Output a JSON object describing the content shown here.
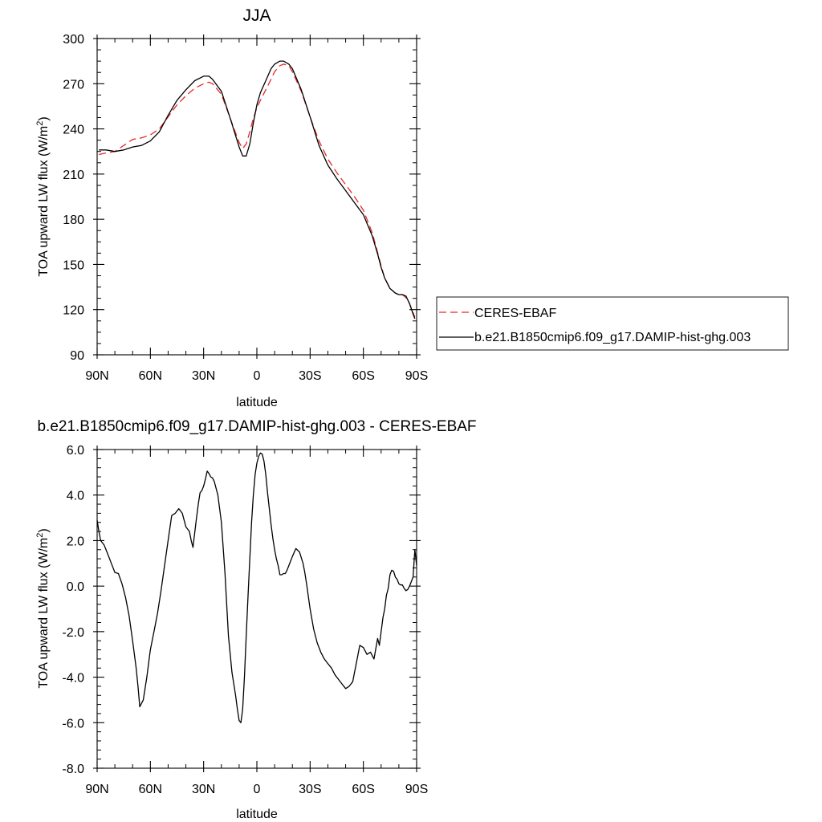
{
  "chart_data": [
    {
      "type": "line",
      "title": "JJA",
      "xlabel": "latitude",
      "ylabel": "TOA upward LW flux (W/m",
      "ylabel_sup": "2",
      "ylabel_close": ")",
      "x_ticks": [
        -90,
        -60,
        -30,
        0,
        30,
        60,
        90
      ],
      "x_tick_labels": [
        "90N",
        "60N",
        "30N",
        "0",
        "30S",
        "60S",
        "90S"
      ],
      "xlim": [
        -90,
        90
      ],
      "y_ticks": [
        90,
        120,
        150,
        180,
        210,
        240,
        270,
        300
      ],
      "y_tick_labels": [
        "90",
        "120",
        "150",
        "180",
        "210",
        "240",
        "270",
        "300"
      ],
      "ylim": [
        90,
        300
      ],
      "legend_position": "right",
      "series": [
        {
          "name": "CERES-EBAF",
          "color": "#e8282b",
          "dash": "dashed",
          "x": [
            -89,
            -85,
            -80,
            -75,
            -70,
            -65,
            -60,
            -55,
            -50,
            -45,
            -40,
            -35,
            -30,
            -27,
            -25,
            -20,
            -15,
            -10,
            -8,
            -6,
            -4,
            -2,
            0,
            2,
            5,
            8,
            10,
            13,
            15,
            18,
            20,
            25,
            30,
            35,
            40,
            45,
            50,
            55,
            60,
            65,
            68,
            70,
            72,
            75,
            78,
            80,
            82,
            84,
            86,
            88,
            89
          ],
          "y": [
            223,
            224,
            225,
            229,
            233,
            234,
            236,
            240,
            248,
            256,
            262,
            267,
            270,
            271,
            270,
            263,
            247,
            231,
            227,
            230,
            238,
            247,
            254,
            259,
            266,
            273,
            278,
            282,
            283,
            282,
            278,
            265,
            248,
            232,
            220,
            211,
            203,
            195,
            186,
            171,
            158,
            149,
            141,
            134,
            131,
            130,
            130,
            128,
            124,
            118,
            115
          ]
        },
        {
          "name": "b.e21.B1850cmip6.f09_g17.DAMIP-hist-ghg.003",
          "color": "#000000",
          "dash": "solid",
          "x": [
            -89,
            -85,
            -80,
            -75,
            -70,
            -65,
            -60,
            -55,
            -50,
            -45,
            -40,
            -35,
            -30,
            -27,
            -25,
            -20,
            -15,
            -10,
            -8,
            -6,
            -4,
            -2,
            0,
            2,
            5,
            8,
            10,
            13,
            15,
            18,
            20,
            25,
            30,
            35,
            40,
            45,
            50,
            55,
            60,
            65,
            68,
            70,
            72,
            75,
            78,
            80,
            82,
            84,
            86,
            88,
            89
          ],
          "y": [
            226,
            226,
            225,
            226,
            228,
            229,
            232,
            238,
            249,
            259,
            266,
            272,
            275,
            275,
            273,
            265,
            247,
            228,
            222,
            222,
            230,
            244,
            256,
            264,
            272,
            280,
            283,
            285,
            285,
            283,
            280,
            266,
            248,
            229,
            216,
            207,
            199,
            191,
            183,
            169,
            157,
            148,
            141,
            134,
            131,
            130,
            130,
            129,
            124,
            117,
            114
          ]
        }
      ]
    },
    {
      "type": "line",
      "title": "b.e21.B1850cmip6.f09_g17.DAMIP-hist-ghg.003 - CERES-EBAF",
      "xlabel": "latitude",
      "ylabel": "TOA upward LW flux (W/m",
      "ylabel_sup": "2",
      "ylabel_close": ")",
      "x_ticks": [
        -90,
        -60,
        -30,
        0,
        30,
        60,
        90
      ],
      "x_tick_labels": [
        "90N",
        "60N",
        "30N",
        "0",
        "30S",
        "60S",
        "90S"
      ],
      "xlim": [
        -90,
        90
      ],
      "y_ticks": [
        -8,
        -6,
        -4,
        -2,
        0,
        2,
        4,
        6
      ],
      "y_tick_labels": [
        "-8.0",
        "-6.0",
        "-4.0",
        "-2.0",
        "0.0",
        "2.0",
        "4.0",
        "6.0"
      ],
      "ylim": [
        -8,
        6
      ],
      "series": [
        {
          "name": "",
          "color": "#000000",
          "dash": "solid",
          "x": [
            -90,
            -89,
            -88,
            -86,
            -84,
            -82,
            -80,
            -78,
            -76,
            -74,
            -72,
            -70,
            -68,
            -67,
            -66,
            -64,
            -62,
            -60,
            -58,
            -56,
            -54,
            -52,
            -50,
            -48,
            -46,
            -44,
            -42,
            -40,
            -38,
            -37,
            -36,
            -34,
            -33,
            -32,
            -31,
            -30,
            -29,
            -28,
            -27,
            -26,
            -25,
            -24,
            -22,
            -20,
            -18,
            -16,
            -14,
            -12,
            -11,
            -10,
            -9,
            -8,
            -7,
            -6,
            -5,
            -4,
            -3,
            -2,
            -1,
            0,
            1,
            2,
            3,
            4,
            5,
            6,
            7,
            8,
            9,
            10,
            11,
            12,
            13,
            14,
            15,
            16,
            17,
            18,
            19,
            20,
            22,
            24,
            26,
            27,
            28,
            30,
            32,
            34,
            36,
            38,
            40,
            42,
            44,
            46,
            48,
            50,
            52,
            54,
            55,
            56,
            57,
            58,
            60,
            62,
            64,
            66,
            68,
            69,
            70,
            71,
            72,
            73,
            74,
            75,
            76,
            77,
            78,
            79,
            80,
            81,
            82,
            83,
            84,
            85,
            86,
            87,
            88,
            89,
            90
          ],
          "y": [
            2.9,
            2.4,
            2.0,
            1.8,
            1.4,
            1.0,
            0.6,
            0.55,
            0.1,
            -0.5,
            -1.3,
            -2.4,
            -3.6,
            -4.4,
            -5.3,
            -5.0,
            -4.0,
            -2.8,
            -2.0,
            -1.2,
            -0.2,
            0.9,
            2.0,
            3.1,
            3.2,
            3.4,
            3.2,
            2.6,
            2.4,
            2.0,
            1.7,
            3.0,
            3.6,
            4.1,
            4.2,
            4.4,
            4.7,
            5.05,
            4.95,
            4.8,
            4.75,
            4.6,
            4.0,
            2.8,
            0.6,
            -2.2,
            -3.8,
            -4.8,
            -5.4,
            -5.9,
            -6.0,
            -5.4,
            -4.0,
            -2.2,
            -0.5,
            1.2,
            2.8,
            4.0,
            4.9,
            5.4,
            5.7,
            5.85,
            5.8,
            5.5,
            4.9,
            4.1,
            3.4,
            2.7,
            2.1,
            1.6,
            1.2,
            0.9,
            0.5,
            0.5,
            0.55,
            0.55,
            0.7,
            0.9,
            1.1,
            1.3,
            1.65,
            1.5,
            1.0,
            0.6,
            0.1,
            -1.0,
            -1.9,
            -2.5,
            -2.9,
            -3.2,
            -3.4,
            -3.6,
            -3.9,
            -4.1,
            -4.3,
            -4.5,
            -4.4,
            -4.2,
            -3.8,
            -3.4,
            -3.0,
            -2.6,
            -2.7,
            -3.0,
            -2.9,
            -3.2,
            -2.3,
            -2.6,
            -2.0,
            -1.4,
            -1.0,
            -0.4,
            -0.1,
            0.5,
            0.7,
            0.65,
            0.4,
            0.3,
            0.1,
            0.05,
            0.05,
            -0.1,
            -0.2,
            -0.15,
            0.0,
            0.2,
            0.4,
            1.6,
            0.9
          ]
        }
      ]
    }
  ]
}
